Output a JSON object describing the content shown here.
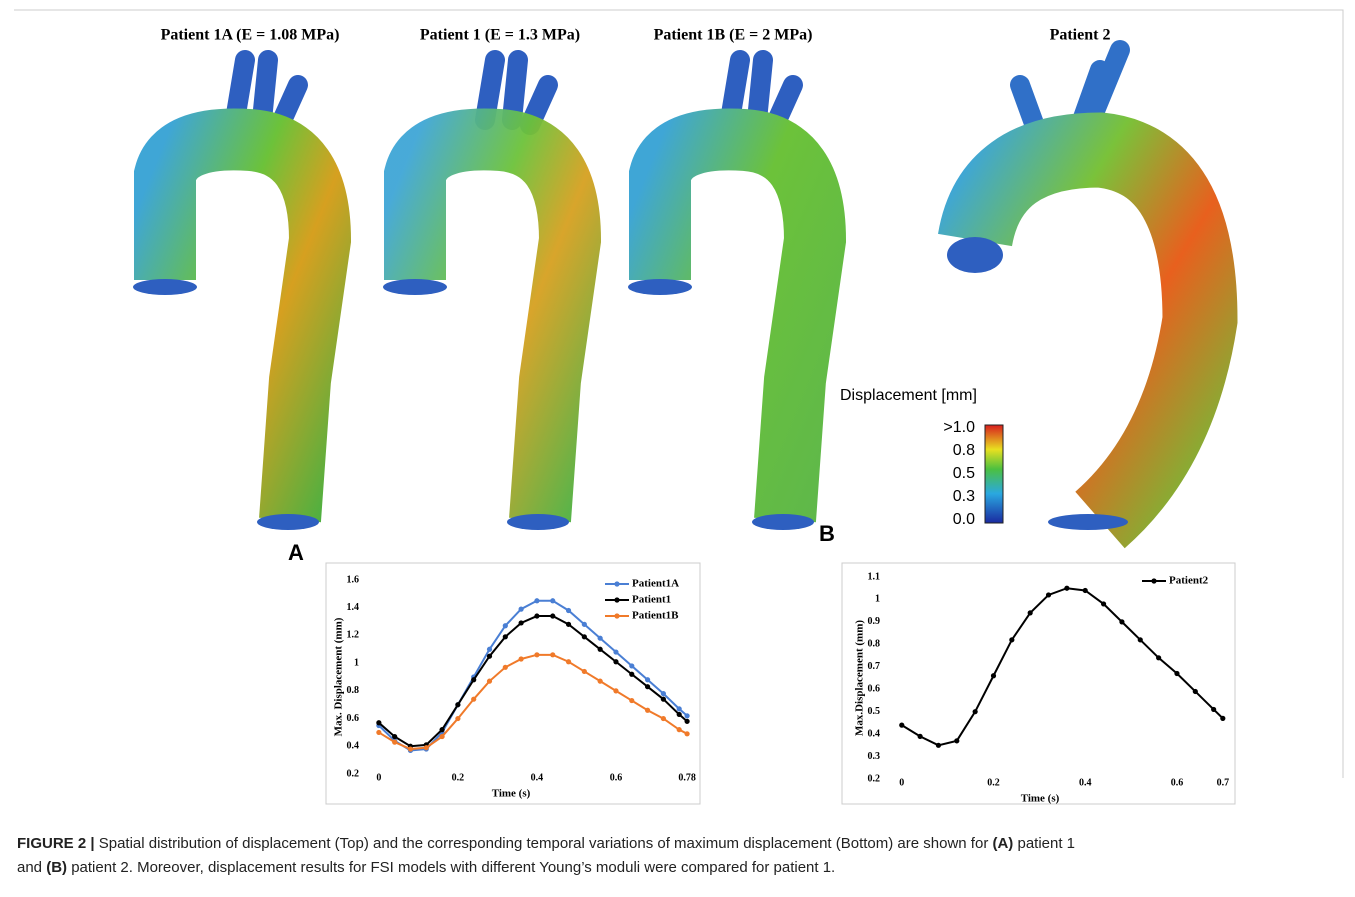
{
  "panels": [
    "Patient 1A (E = 1.08 MPa)",
    "Patient 1 (E = 1.3 MPa)",
    "Patient 1B (E = 2 MPa)",
    "Patient 2"
  ],
  "panel_labels": [
    "A",
    "B"
  ],
  "colorbar": {
    "title": "Displacement [mm]",
    "labels": [
      ">1.0",
      "0.8",
      "0.5",
      "0.3",
      "0.0"
    ]
  },
  "chart_data": [
    {
      "type": "line",
      "x_label": "Time (s)",
      "y_label": "Max. Displacement (mm)",
      "x": [
        0,
        0.04,
        0.08,
        0.12,
        0.16,
        0.2,
        0.24,
        0.28,
        0.32,
        0.36,
        0.4,
        0.44,
        0.48,
        0.52,
        0.56,
        0.6,
        0.64,
        0.68,
        0.72,
        0.76,
        0.78
      ],
      "series": [
        {
          "name": "Patient1A",
          "color": "#4a7fd4",
          "values": [
            0.55,
            0.44,
            0.37,
            0.38,
            0.5,
            0.7,
            0.9,
            1.1,
            1.27,
            1.39,
            1.45,
            1.45,
            1.38,
            1.28,
            1.18,
            1.08,
            0.98,
            0.88,
            0.78,
            0.67,
            0.62
          ]
        },
        {
          "name": "Patient1",
          "color": "#000000",
          "values": [
            0.57,
            0.47,
            0.4,
            0.41,
            0.52,
            0.7,
            0.88,
            1.05,
            1.19,
            1.29,
            1.34,
            1.34,
            1.28,
            1.19,
            1.1,
            1.01,
            0.92,
            0.83,
            0.74,
            0.63,
            0.58
          ]
        },
        {
          "name": "Patient1B",
          "color": "#f07a2a",
          "values": [
            0.5,
            0.43,
            0.38,
            0.39,
            0.47,
            0.6,
            0.74,
            0.87,
            0.97,
            1.03,
            1.06,
            1.06,
            1.01,
            0.94,
            0.87,
            0.8,
            0.73,
            0.66,
            0.6,
            0.52,
            0.49
          ]
        }
      ],
      "xlim": [
        -0.03,
        0.8
      ],
      "xticks": [
        0,
        0.2,
        0.4,
        0.6,
        0.78
      ],
      "ylim": [
        0.2,
        1.6
      ],
      "yticks": [
        0.2,
        0.4,
        0.6,
        0.8,
        1,
        1.2,
        1.4,
        1.6
      ],
      "legend": "top-right"
    },
    {
      "type": "line",
      "x_label": "Time (s)",
      "y_label": "Max.Displacement (mm)",
      "x": [
        0,
        0.04,
        0.08,
        0.12,
        0.16,
        0.2,
        0.24,
        0.28,
        0.32,
        0.36,
        0.4,
        0.44,
        0.48,
        0.52,
        0.56,
        0.6,
        0.64,
        0.68,
        0.7
      ],
      "series": [
        {
          "name": "Patient2",
          "color": "#000000",
          "values": [
            0.44,
            0.39,
            0.35,
            0.37,
            0.5,
            0.66,
            0.82,
            0.94,
            1.02,
            1.05,
            1.04,
            0.98,
            0.9,
            0.82,
            0.74,
            0.67,
            0.59,
            0.51,
            0.47
          ]
        }
      ],
      "xlim": [
        -0.03,
        0.72
      ],
      "xticks": [
        0,
        0.2,
        0.4,
        0.6,
        0.7
      ],
      "ylim": [
        0.2,
        1.1
      ],
      "yticks": [
        0.2,
        0.3,
        0.4,
        0.5,
        0.6,
        0.7,
        0.8,
        0.9,
        1,
        1.1
      ],
      "legend": "top-right"
    }
  ],
  "caption": {
    "label": "FIGURE 2 |",
    "text": [
      "Spatial distribution of displacement (Top) and the corresponding temporal variations of maximum displacement (Bottom) are shown for ",
      "(A)",
      " patient 1 and ",
      "(B)",
      " patient 2. Moreover, displacement results for FSI models with different Young’s moduli were compared for patient 1."
    ]
  }
}
